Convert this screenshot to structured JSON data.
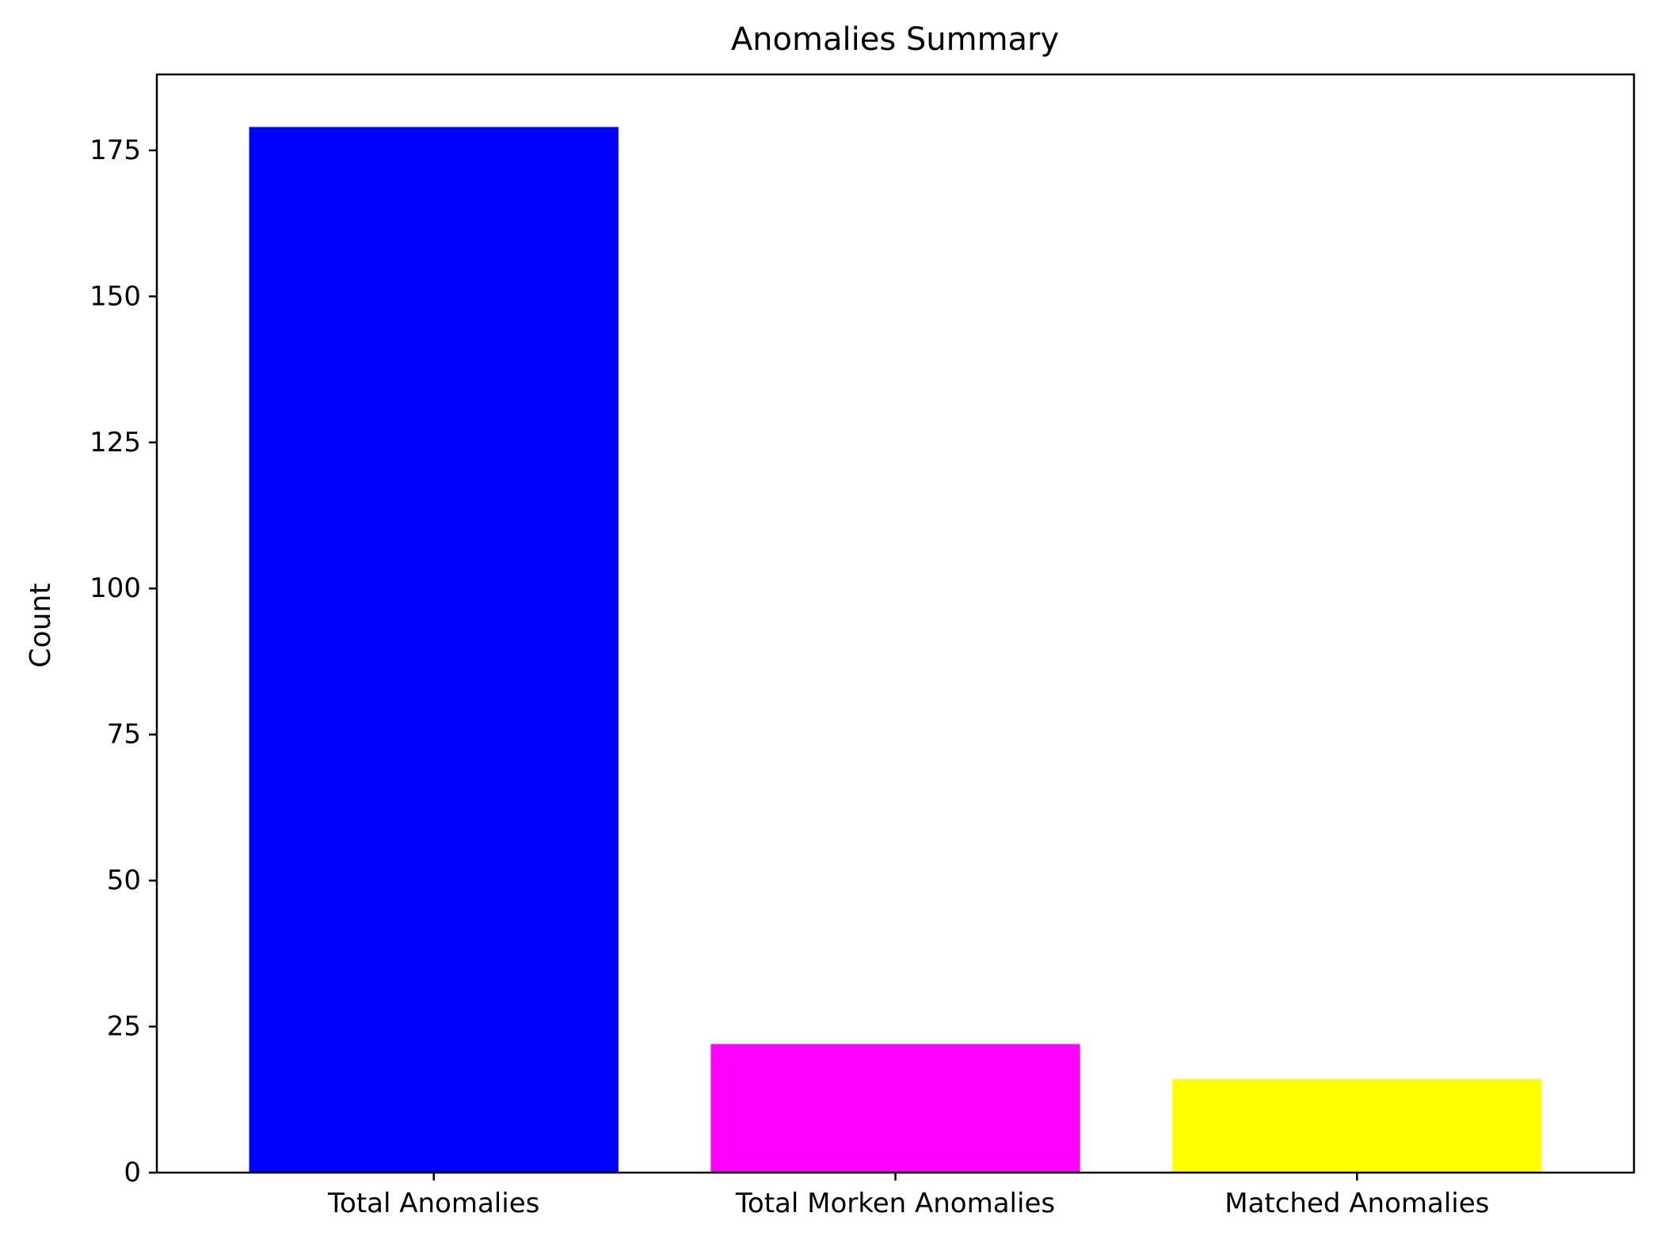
{
  "chart_data": {
    "type": "bar",
    "title": "Anomalies Summary",
    "xlabel": "",
    "ylabel": "Count",
    "categories": [
      "Total Anomalies",
      "Total Morken Anomalies",
      "Matched Anomalies"
    ],
    "values": [
      179,
      22,
      16
    ],
    "colors": [
      "#0000ff",
      "#ff00ff",
      "#ffff00"
    ],
    "ylim": [
      0,
      188
    ],
    "yticks": [
      0,
      25,
      50,
      75,
      100,
      125,
      150,
      175
    ],
    "grid": false,
    "legend": "none"
  }
}
